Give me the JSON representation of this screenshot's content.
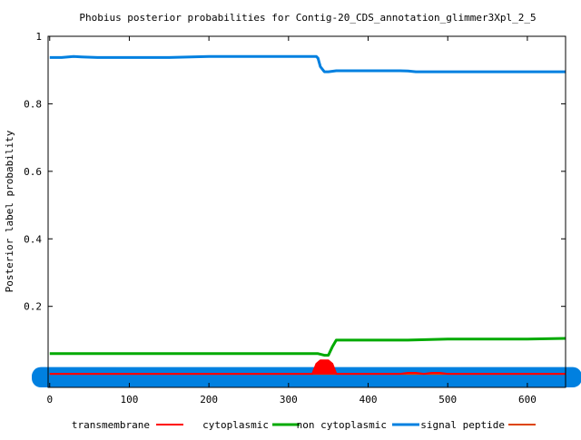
{
  "chart_data": {
    "type": "line",
    "title": "Phobius posterior probabilities for Contig-20_CDS_annotation_glimmer3Xpl_2_5",
    "xlabel": "",
    "ylabel": "Posterior label probability",
    "xlim": [
      -2,
      648
    ],
    "ylim": [
      -0.04,
      1.0
    ],
    "xticks": [
      0,
      100,
      200,
      300,
      400,
      500,
      600
    ],
    "yticks": [
      0.2,
      0.4,
      0.6,
      0.8,
      1
    ],
    "ytick_labels": [
      "0.2",
      "0.4",
      "0.6",
      "0.8",
      "1"
    ],
    "grid": false,
    "legend_position": "bottom",
    "series": [
      {
        "name": "transmembrane",
        "color": "#ff0000",
        "x": [
          0,
          320,
          330,
          335,
          340,
          345,
          350,
          355,
          360,
          440,
          450,
          460,
          470,
          480,
          490,
          500,
          648
        ],
        "y": [
          0.0,
          0.0,
          0.0,
          0.03,
          0.04,
          0.04,
          0.04,
          0.03,
          0.0,
          0.0,
          0.003,
          0.003,
          0.0,
          0.003,
          0.003,
          0.0,
          0.0
        ],
        "width": 2
      },
      {
        "name": "cytoplasmic",
        "color": "#00aa00",
        "x": [
          0,
          330,
          337,
          345,
          350,
          355,
          360,
          400,
          450,
          500,
          600,
          648
        ],
        "y": [
          0.06,
          0.06,
          0.06,
          0.055,
          0.055,
          0.08,
          0.1,
          0.1,
          0.1,
          0.103,
          0.103,
          0.105
        ],
        "width": 3
      },
      {
        "name": "non cytoplasmic",
        "color": "#0080e0",
        "x": [
          0,
          15,
          30,
          40,
          60,
          150,
          200,
          335,
          337,
          340,
          345,
          350,
          360,
          400,
          440,
          450,
          460,
          600,
          648
        ],
        "y": [
          0.937,
          0.937,
          0.94,
          0.939,
          0.937,
          0.937,
          0.94,
          0.94,
          0.935,
          0.91,
          0.895,
          0.895,
          0.898,
          0.898,
          0.898,
          0.897,
          0.895,
          0.895,
          0.895
        ],
        "width": 3
      },
      {
        "name": "signal peptide",
        "color": "#dd4400",
        "x": [
          0,
          648
        ],
        "y": [
          0.0,
          0.0
        ],
        "width": 2
      }
    ],
    "band": {
      "name": "non cytoplasmic",
      "color": "#0080e0",
      "y": [
        -0.04,
        0.02
      ]
    }
  }
}
